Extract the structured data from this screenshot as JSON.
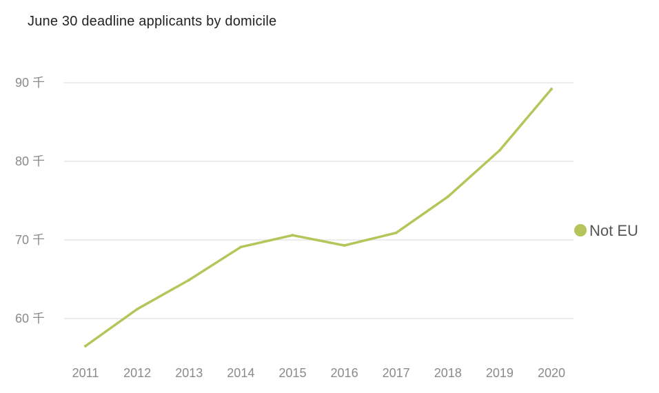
{
  "chart_data": {
    "type": "line",
    "title": "June 30 deadline applicants by domicile",
    "xlabel": "",
    "ylabel": "",
    "x": [
      "2011",
      "2012",
      "2013",
      "2014",
      "2015",
      "2016",
      "2017",
      "2018",
      "2019",
      "2020"
    ],
    "series": [
      {
        "name": "Not EU",
        "color": "#b5c55a",
        "values": [
          56.5,
          61.2,
          64.9,
          69.1,
          70.6,
          69.3,
          70.9,
          75.5,
          81.4,
          89.2
        ]
      }
    ],
    "ylim": [
      55,
      91
    ],
    "y_ticks": [
      {
        "value": 60,
        "label": "60 千"
      },
      {
        "value": 70,
        "label": "70 千"
      },
      {
        "value": 80,
        "label": "80 千"
      },
      {
        "value": 90,
        "label": "90 千"
      }
    ],
    "grid": true,
    "legend_position": "right"
  }
}
